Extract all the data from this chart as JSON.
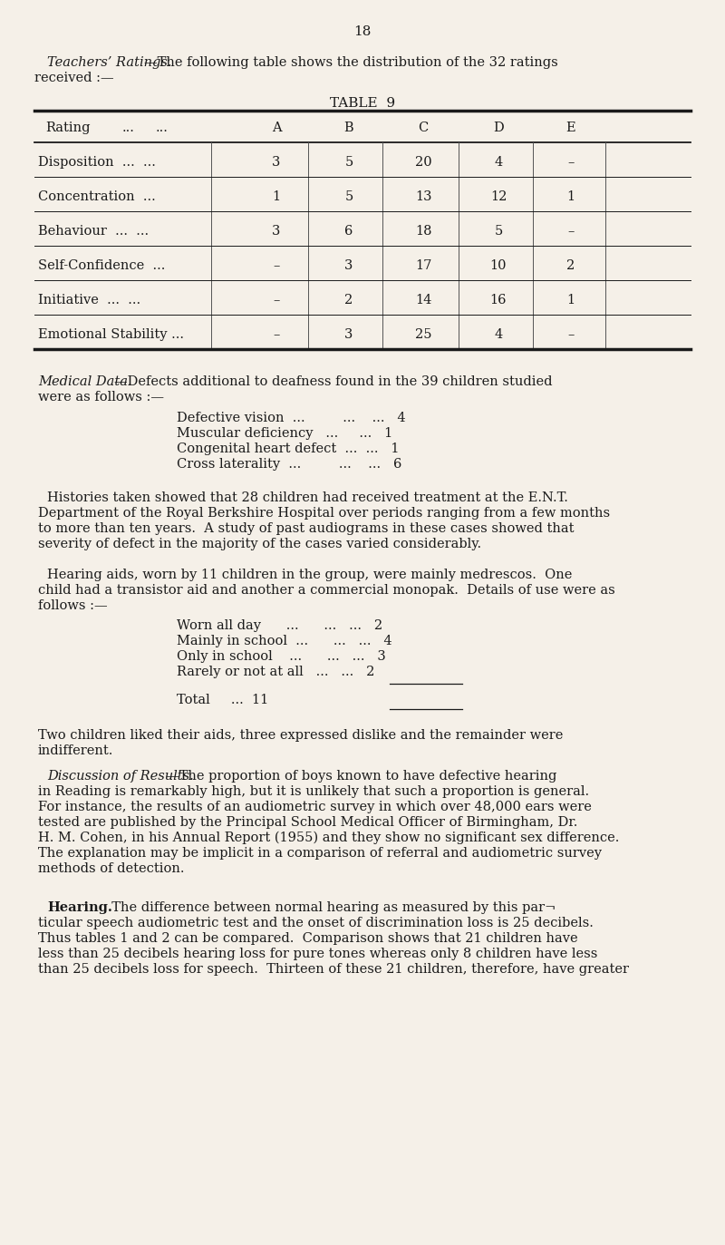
{
  "bg_color": "#f5f0e8",
  "text_color": "#1a1a1a",
  "page_number": "18",
  "table_title": "TABLE  9",
  "row_names": [
    "Disposition  ...  ...",
    "Concentration  ...",
    "Behaviour  ...  ...",
    "Self-Confidence  ...",
    "Initiative  ...  ...",
    "Emotional Stability ..."
  ],
  "col_headers": [
    "A",
    "B",
    "C",
    "D",
    "E"
  ],
  "row_data": [
    [
      "3",
      "5",
      "20",
      "4",
      "–"
    ],
    [
      "1",
      "5",
      "13",
      "12",
      "1"
    ],
    [
      "3",
      "6",
      "18",
      "5",
      "–"
    ],
    [
      "–",
      "3",
      "17",
      "10",
      "2"
    ],
    [
      "–",
      "2",
      "14",
      "16",
      "1"
    ],
    [
      "–",
      "3",
      "25",
      "4",
      "–"
    ]
  ],
  "defects": [
    [
      "Defective vision  ...      ...    ...   4"
    ],
    [
      "Muscular deficiency  ...   ...   1"
    ],
    [
      "Congenital heart defect  ...   ...   1"
    ],
    [
      "Cross laterality  ...      ...    ...   6"
    ]
  ],
  "hearing_aid_items": [
    "Worn all day      ...      ...   ...   2",
    "Mainly in school  ...      ...   ...   4",
    "Only in school    ...      ...   ...   3",
    "Rarely or not at all   ...   ...   2"
  ],
  "disc_lines": [
    "in Reading is remarkably high, but it is unlikely that such a proportion is general.",
    "For instance, the results of an audiometric survey in which over 48,000 ears were",
    "tested are published by the Principal School Medical Officer of Birmingham, Dr.",
    "H. M. Cohen, in his Annual Report (1955) and they show no significant sex difference.",
    "The explanation may be implicit in a comparison of referral and audiometric survey",
    "methods of detection."
  ],
  "hear_lines": [
    "ticular speech audiometric test and the onset of discrimination loss is 25 decibels.",
    "Thus tables 1 and 2 can be compared.  Comparison shows that 21 children have",
    "less than 25 decibels hearing loss for pure tones whereas only 8 children have less",
    "than 25 decibels loss for speech.  Thirteen of these 21 children, therefore, have greater"
  ]
}
